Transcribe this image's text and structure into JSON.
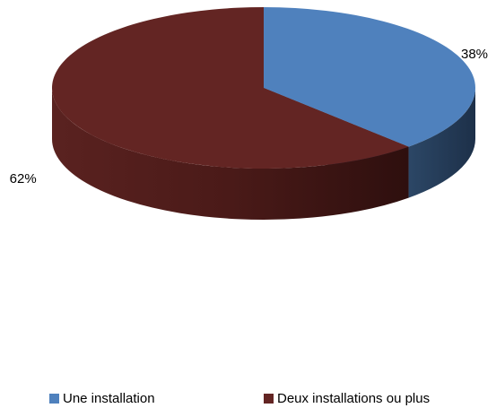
{
  "chart_data": {
    "type": "pie",
    "style": "3d",
    "title": "",
    "slices": [
      {
        "label": "Une installation",
        "value": 38,
        "display": "38%",
        "color": "#4f81bd",
        "side_color": "#26405f"
      },
      {
        "label": "Deux installations ou plus",
        "value": 62,
        "display": "62%",
        "color": "#632523",
        "side_color": "#3a1514"
      }
    ],
    "legend_position": "bottom"
  }
}
